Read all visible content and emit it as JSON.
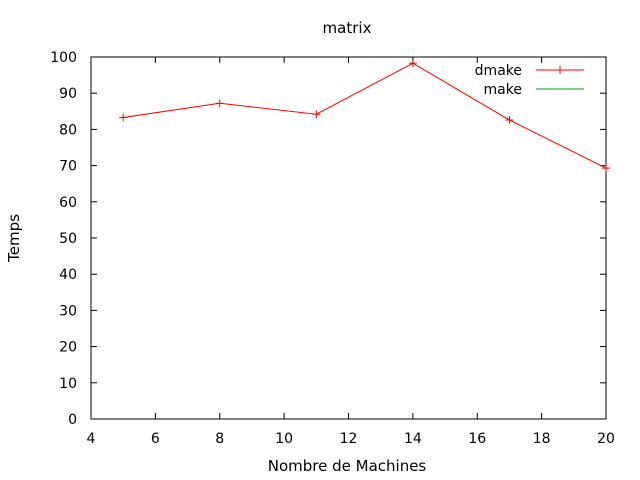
{
  "chart_data": {
    "type": "line",
    "title": "matrix",
    "xlabel": "Nombre de Machines",
    "ylabel": "Temps",
    "xlim": [
      4,
      20
    ],
    "ylim": [
      0,
      100
    ],
    "xticks": [
      "4",
      "6",
      "8",
      "10",
      "12",
      "14",
      "16",
      "18",
      "20"
    ],
    "yticks": [
      "0",
      "10",
      "20",
      "30",
      "40",
      "50",
      "60",
      "70",
      "80",
      "90",
      "100"
    ],
    "grid": false,
    "legend_position": "top-right",
    "series": [
      {
        "name": "dmake",
        "color": "#ff0000",
        "marker": "plus",
        "x": [
          5,
          8,
          11,
          14,
          17,
          20
        ],
        "y": [
          83.3,
          87.2,
          84.2,
          98.3,
          82.6,
          69.3
        ]
      },
      {
        "name": "make",
        "color": "#00a000",
        "marker": "none",
        "x": [],
        "y": []
      }
    ]
  }
}
